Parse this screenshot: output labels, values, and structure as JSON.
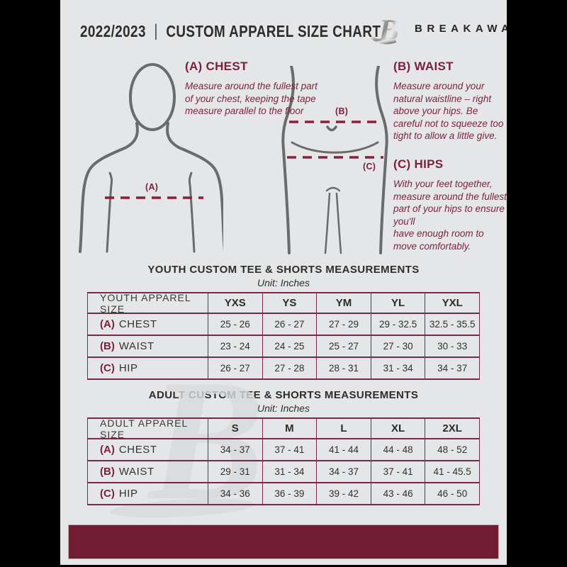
{
  "header": {
    "year": "2022/2023",
    "divider": "|",
    "title": "CUSTOM APPAREL SIZE CHART",
    "brand": "BREAKAWAY",
    "logo_letter": "B"
  },
  "instructions": {
    "chest": {
      "heading": "(A) CHEST",
      "body": "Measure around the fullest part of your chest, keeping the tape measure parallel to the floor",
      "label": "(A)"
    },
    "waist": {
      "heading": "(B) WAIST",
      "body": "Measure around your natural waistline – right above your hips. Be careful not to squeeze too tight to allow a little give.",
      "label": "(B)"
    },
    "hips": {
      "heading": "(C) HIPS",
      "body": "With your feet together, measure around the fullest part of your hips to ensure you'll\nhave enough room to move comfortably.",
      "label": "(C)"
    }
  },
  "tables": [
    {
      "title": "YOUTH CUSTOM TEE & SHORTS MEASUREMENTS",
      "unit": "Unit: Inches",
      "header": [
        "YOUTH APPAREL SIZE",
        "YXS",
        "YS",
        "YM",
        "YL",
        "YXL"
      ],
      "rows": [
        {
          "prefix": "(A)",
          "label": "CHEST",
          "values": [
            "25 - 26",
            "26 - 27",
            "27 - 29",
            "29 - 32.5",
            "32.5 - 35.5"
          ]
        },
        {
          "prefix": "(B)",
          "label": "WAIST",
          "values": [
            "23 - 24",
            "24 - 25",
            "25 - 27",
            "27 - 30",
            "30 - 33"
          ]
        },
        {
          "prefix": "(C)",
          "label": "HIP",
          "values": [
            "26 - 27",
            "27 - 28",
            "28 - 31",
            "31 - 34",
            "34 - 37"
          ]
        }
      ]
    },
    {
      "title": "ADULT CUSTOM TEE & SHORTS MEASUREMENTS",
      "unit": "Unit: Inches",
      "header": [
        "ADULT APPAREL SIZE",
        "S",
        "M",
        "L",
        "XL",
        "2XL"
      ],
      "rows": [
        {
          "prefix": "(A)",
          "label": "CHEST",
          "values": [
            "34 - 37",
            "37 - 41",
            "41 - 44",
            "44 - 48",
            "48 - 52"
          ]
        },
        {
          "prefix": "(B)",
          "label": "WAIST",
          "values": [
            "29 - 31",
            "31 - 34",
            "34 - 37",
            "37 - 41",
            "41 - 45.5"
          ]
        },
        {
          "prefix": "(C)",
          "label": "HIP",
          "values": [
            "34 - 36",
            "36 - 39",
            "39 - 42",
            "43 - 46",
            "46 - 50"
          ]
        }
      ]
    }
  ],
  "watermark_letter": "B",
  "colors": {
    "maroon": "#7b1f3e",
    "footer_bar": "#701d34",
    "table_line": "#7d2746",
    "page_background": "#e5e6e7",
    "text_dark": "#2d2d2d",
    "figure_gray": "#6a6b6c"
  }
}
